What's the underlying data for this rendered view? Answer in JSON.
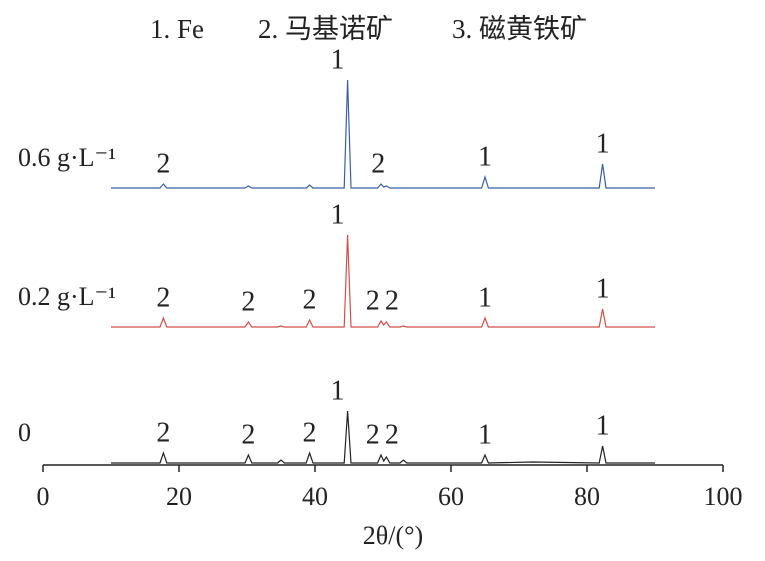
{
  "chart_data": {
    "type": "line",
    "key": [
      "1. Fe",
      "2. 马基诺矿",
      "3. 磁黄铁矿"
    ],
    "xlabel": "2θ/(°)",
    "x": [
      10,
      15,
      17.2,
      17.7,
      18.2,
      22,
      29.7,
      30.2,
      30.7,
      34.5,
      35,
      35.5,
      38.7,
      39.2,
      39.7,
      44.3,
      44.8,
      45.3,
      49.2,
      49.7,
      50.1,
      50.5,
      51,
      52.5,
      53,
      53.5,
      60,
      64.5,
      65,
      65.5,
      72,
      81.8,
      82.3,
      82.8,
      90
    ],
    "xlim": [
      0,
      100
    ],
    "xticks": [
      0,
      20,
      40,
      60,
      80,
      100
    ],
    "ylim": [
      0,
      400
    ],
    "series": [
      {
        "name": "0",
        "color": "#222222",
        "values": [
          2,
          2,
          2,
          12,
          2,
          2,
          2,
          10,
          2,
          2,
          5,
          2,
          2,
          12,
          2,
          2,
          54,
          2,
          2,
          10,
          4,
          8,
          2,
          2,
          5,
          2,
          2,
          2,
          10,
          2,
          3,
          2,
          19,
          2,
          2
        ],
        "peak_labels": [
          {
            "label": "2",
            "x": 17.7
          },
          {
            "label": "2",
            "x": 30.2
          },
          {
            "label": "2",
            "x": 39.2
          },
          {
            "label": "1",
            "x": 43.3
          },
          {
            "label": "2",
            "x": 48.5
          },
          {
            "label": "2",
            "x": 51.3
          },
          {
            "label": "1",
            "x": 65
          },
          {
            "label": "1",
            "x": 82.3
          }
        ]
      },
      {
        "name": "0.2 g·L⁻¹",
        "color": "#d0504a",
        "values": [
          138,
          138,
          138,
          147,
          138,
          138,
          138,
          143,
          138,
          138,
          139,
          138,
          138,
          145,
          138,
          138,
          230,
          138,
          138,
          144,
          140,
          143,
          138,
          138,
          139,
          138,
          138,
          138,
          147,
          138,
          138,
          138,
          156,
          138,
          138
        ],
        "peak_labels": [
          {
            "label": "2",
            "x": 17.7
          },
          {
            "label": "2",
            "x": 30.2
          },
          {
            "label": "2",
            "x": 39.2
          },
          {
            "label": "1",
            "x": 43.3
          },
          {
            "label": "2",
            "x": 48.5
          },
          {
            "label": "2",
            "x": 51.3
          },
          {
            "label": "1",
            "x": 65
          },
          {
            "label": "1",
            "x": 82.3
          }
        ]
      },
      {
        "name": "0.6 g·L⁻¹",
        "color": "#3a5fa0",
        "values": [
          277,
          277,
          277,
          281,
          277,
          277,
          277,
          279,
          277,
          277,
          277,
          277,
          277,
          280,
          277,
          277,
          385,
          277,
          277,
          281,
          278,
          279,
          277,
          277,
          277,
          277,
          277,
          277,
          288,
          277,
          277,
          277,
          301,
          277,
          277
        ],
        "peak_labels": [
          {
            "label": "2",
            "x": 17.7
          },
          {
            "label": "1",
            "x": 43.3
          },
          {
            "label": "2",
            "x": 49.3
          },
          {
            "label": "1",
            "x": 65
          },
          {
            "label": "1",
            "x": 82.3
          }
        ]
      }
    ]
  }
}
